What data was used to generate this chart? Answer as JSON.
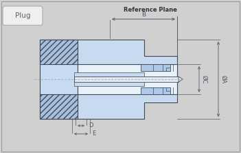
{
  "bg_color": "#d0d0d0",
  "fill_light": "#c8daf0",
  "fill_mid": "#aec8e8",
  "fill_dark": "#90b0d8",
  "fill_white": "#e8f0f8",
  "hatch_fill": "#a8c0dc",
  "line_color": "#404858",
  "dim_color": "#505868",
  "ref_plane_label": "Reference Plane",
  "label_B": "B",
  "label_A": "ØA",
  "label_C": "ØC",
  "label_D": "D",
  "label_E": "E",
  "plug_label": "Plug"
}
